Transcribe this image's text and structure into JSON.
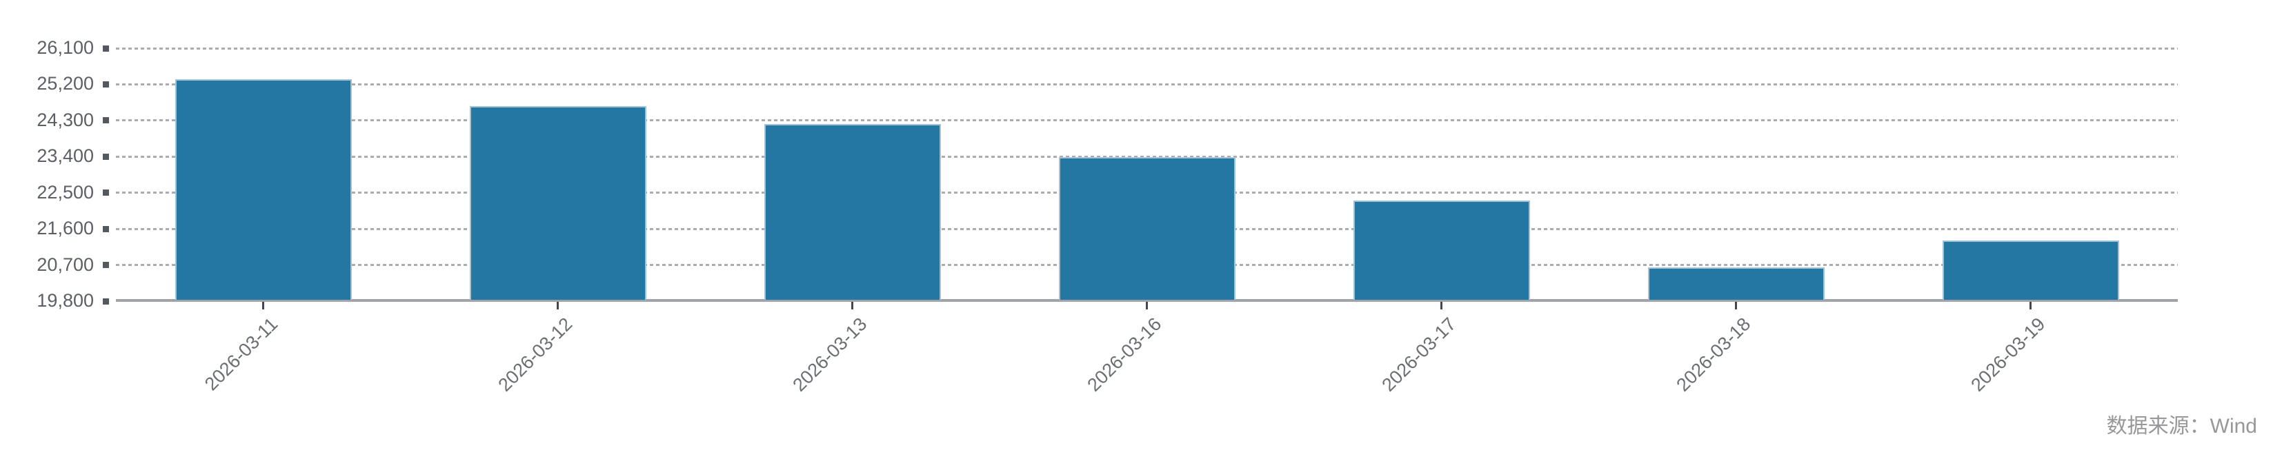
{
  "chart_data": {
    "type": "bar",
    "title": "",
    "categories": [
      "2026-03-11",
      "2026-03-12",
      "2026-03-13",
      "2026-03-16",
      "2026-03-17",
      "2026-03-18",
      "2026-03-19"
    ],
    "values": [
      25290,
      24620,
      24170,
      23350,
      22270,
      20610,
      21280
    ],
    "xlabel": "",
    "ylabel": "",
    "ylim": [
      19800,
      26100
    ],
    "y_interval": 900,
    "y_tick_labels": [
      "19,800",
      "20,700",
      "21,600",
      "22,500",
      "23,400",
      "24,300",
      "25,200",
      "26,100"
    ],
    "grid": "dotted horizontal gridlines, solid bottom axis",
    "legend": "none",
    "bar_color": "#2577A3",
    "x_label_rotation_deg": 45
  },
  "source_text": "数据来源：Wind",
  "colors": {
    "bar": "#2577A3",
    "gridline": "#abacb2",
    "axis_line": "#a2a3a8",
    "y_label": "#5c6066",
    "x_label": "#6b6e72",
    "source_text": "#98989a",
    "background": "#ffffff"
  }
}
